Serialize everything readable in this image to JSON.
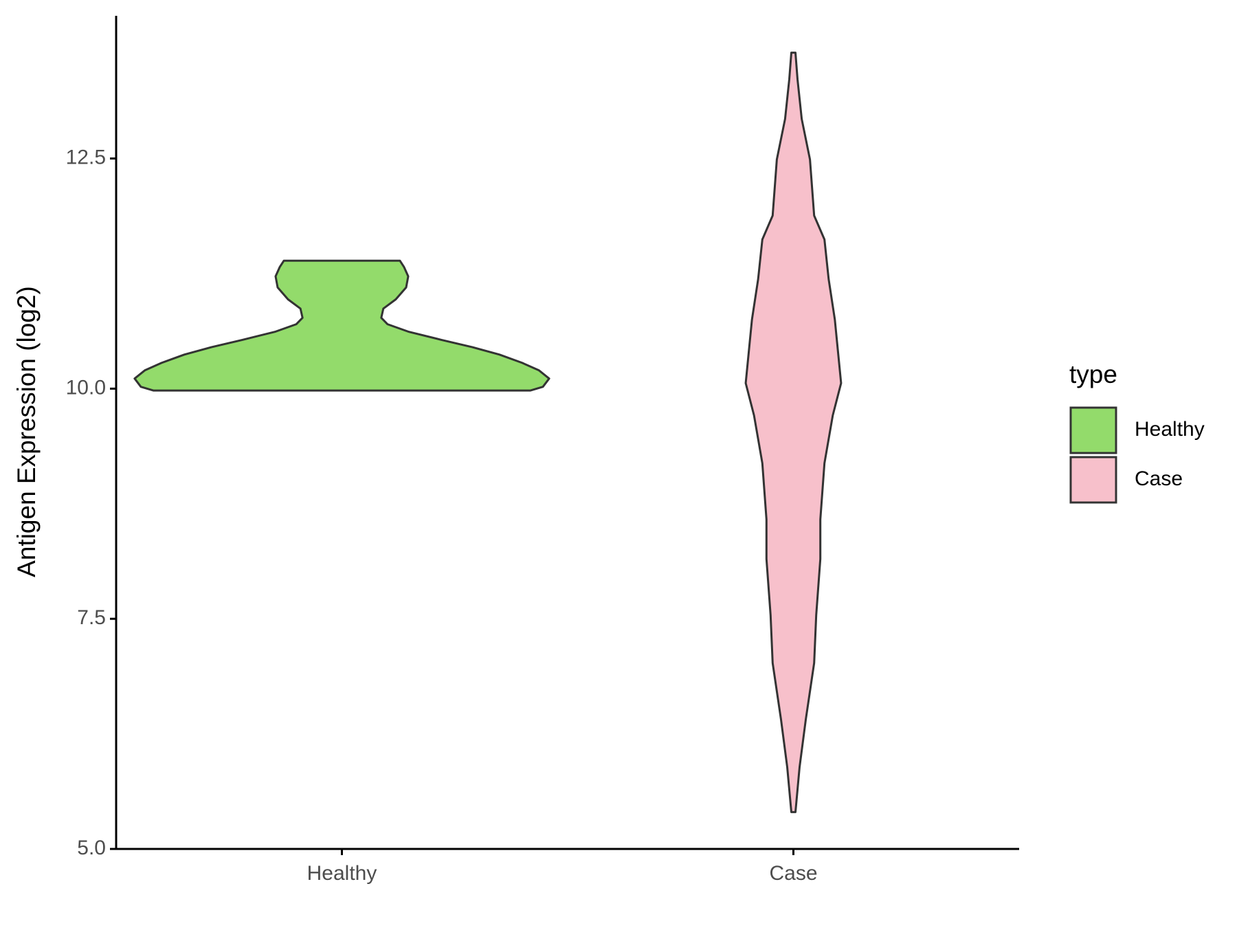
{
  "chart_data": {
    "type": "violin",
    "y_label": "Antigen Expression (log2)",
    "categories": [
      "Healthy",
      "Case"
    ],
    "ylim": [
      5,
      14.05
    ],
    "yticks": [
      {
        "value": 5,
        "label": "5.0"
      },
      7.5,
      {
        "value": 10,
        "label": "10.0"
      },
      12.5
    ],
    "legend_title": "type",
    "legend_position": "right",
    "series": [
      {
        "name": "Healthy",
        "color": "#93db6b",
        "y": [
          9.98,
          10.02,
          10.11,
          10.2,
          10.28,
          10.37,
          10.45,
          10.53,
          10.62,
          10.7,
          10.77,
          10.87,
          10.97,
          11.1,
          11.22,
          11.32,
          11.39
        ],
        "width": [
          0.91,
          0.97,
          1.0,
          0.95,
          0.87,
          0.76,
          0.63,
          0.48,
          0.32,
          0.22,
          0.19,
          0.2,
          0.26,
          0.31,
          0.32,
          0.3,
          0.28
        ]
      },
      {
        "name": "Case",
        "color": "#f7c0cb",
        "y": [
          5.4,
          5.89,
          6.41,
          7.02,
          7.54,
          8.15,
          8.58,
          9.19,
          9.71,
          10.06,
          10.75,
          11.19,
          11.62,
          11.88,
          12.49,
          12.93,
          13.36,
          13.65
        ],
        "width": [
          0.01,
          0.03,
          0.06,
          0.1,
          0.11,
          0.13,
          0.13,
          0.15,
          0.19,
          0.23,
          0.2,
          0.17,
          0.15,
          0.1,
          0.08,
          0.04,
          0.02,
          0.01
        ]
      }
    ]
  }
}
